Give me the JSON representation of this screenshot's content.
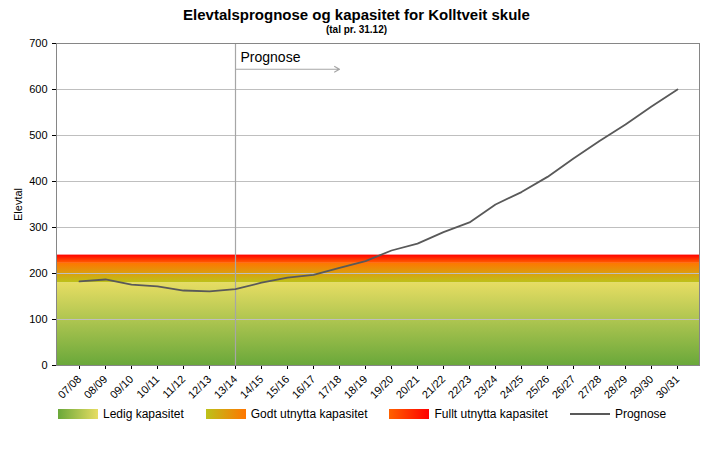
{
  "chart_data": {
    "type": "line",
    "title": "Elevtalsprognose og kapasitet for Kolltveit skule",
    "subtitle": "(tal pr. 31.12)",
    "y_label": "Elevtal",
    "categories": [
      "07/08",
      "08/09",
      "09/10",
      "10/11",
      "11/12",
      "12/13",
      "13/14",
      "14/15",
      "15/16",
      "16/17",
      "17/18",
      "18/19",
      "19/20",
      "20/21",
      "21/22",
      "22/23",
      "23/24",
      "24/25",
      "25/26",
      "26/27",
      "27/28",
      "28/29",
      "29/30",
      "30/31"
    ],
    "series": [
      {
        "name": "Prognose",
        "color": "#595959",
        "values": [
          183,
          187,
          176,
          172,
          163,
          161,
          166,
          180,
          191,
          197,
          212,
          227,
          250,
          265,
          290,
          311,
          350,
          377,
          410,
          450,
          488,
          524,
          563,
          600
        ]
      }
    ],
    "capacity_bands": [
      {
        "name": "Ledig kapasitet",
        "from": 0,
        "to": 180,
        "color": "#6aa83a"
      },
      {
        "name": "Godt utnytta kapasitet",
        "from": 180,
        "to": 222,
        "color": "#ffd700"
      },
      {
        "name": "Fullt utnytta kapasitet",
        "from": 222,
        "to": 240,
        "color": "#ff0000"
      }
    ],
    "annotations": [
      {
        "text": "Prognose",
        "x": "13/14"
      }
    ],
    "ylim": [
      0,
      700
    ],
    "yticks": [
      0,
      100,
      200,
      300,
      400,
      500,
      600,
      700
    ],
    "grid": true,
    "legend": "bottom"
  }
}
